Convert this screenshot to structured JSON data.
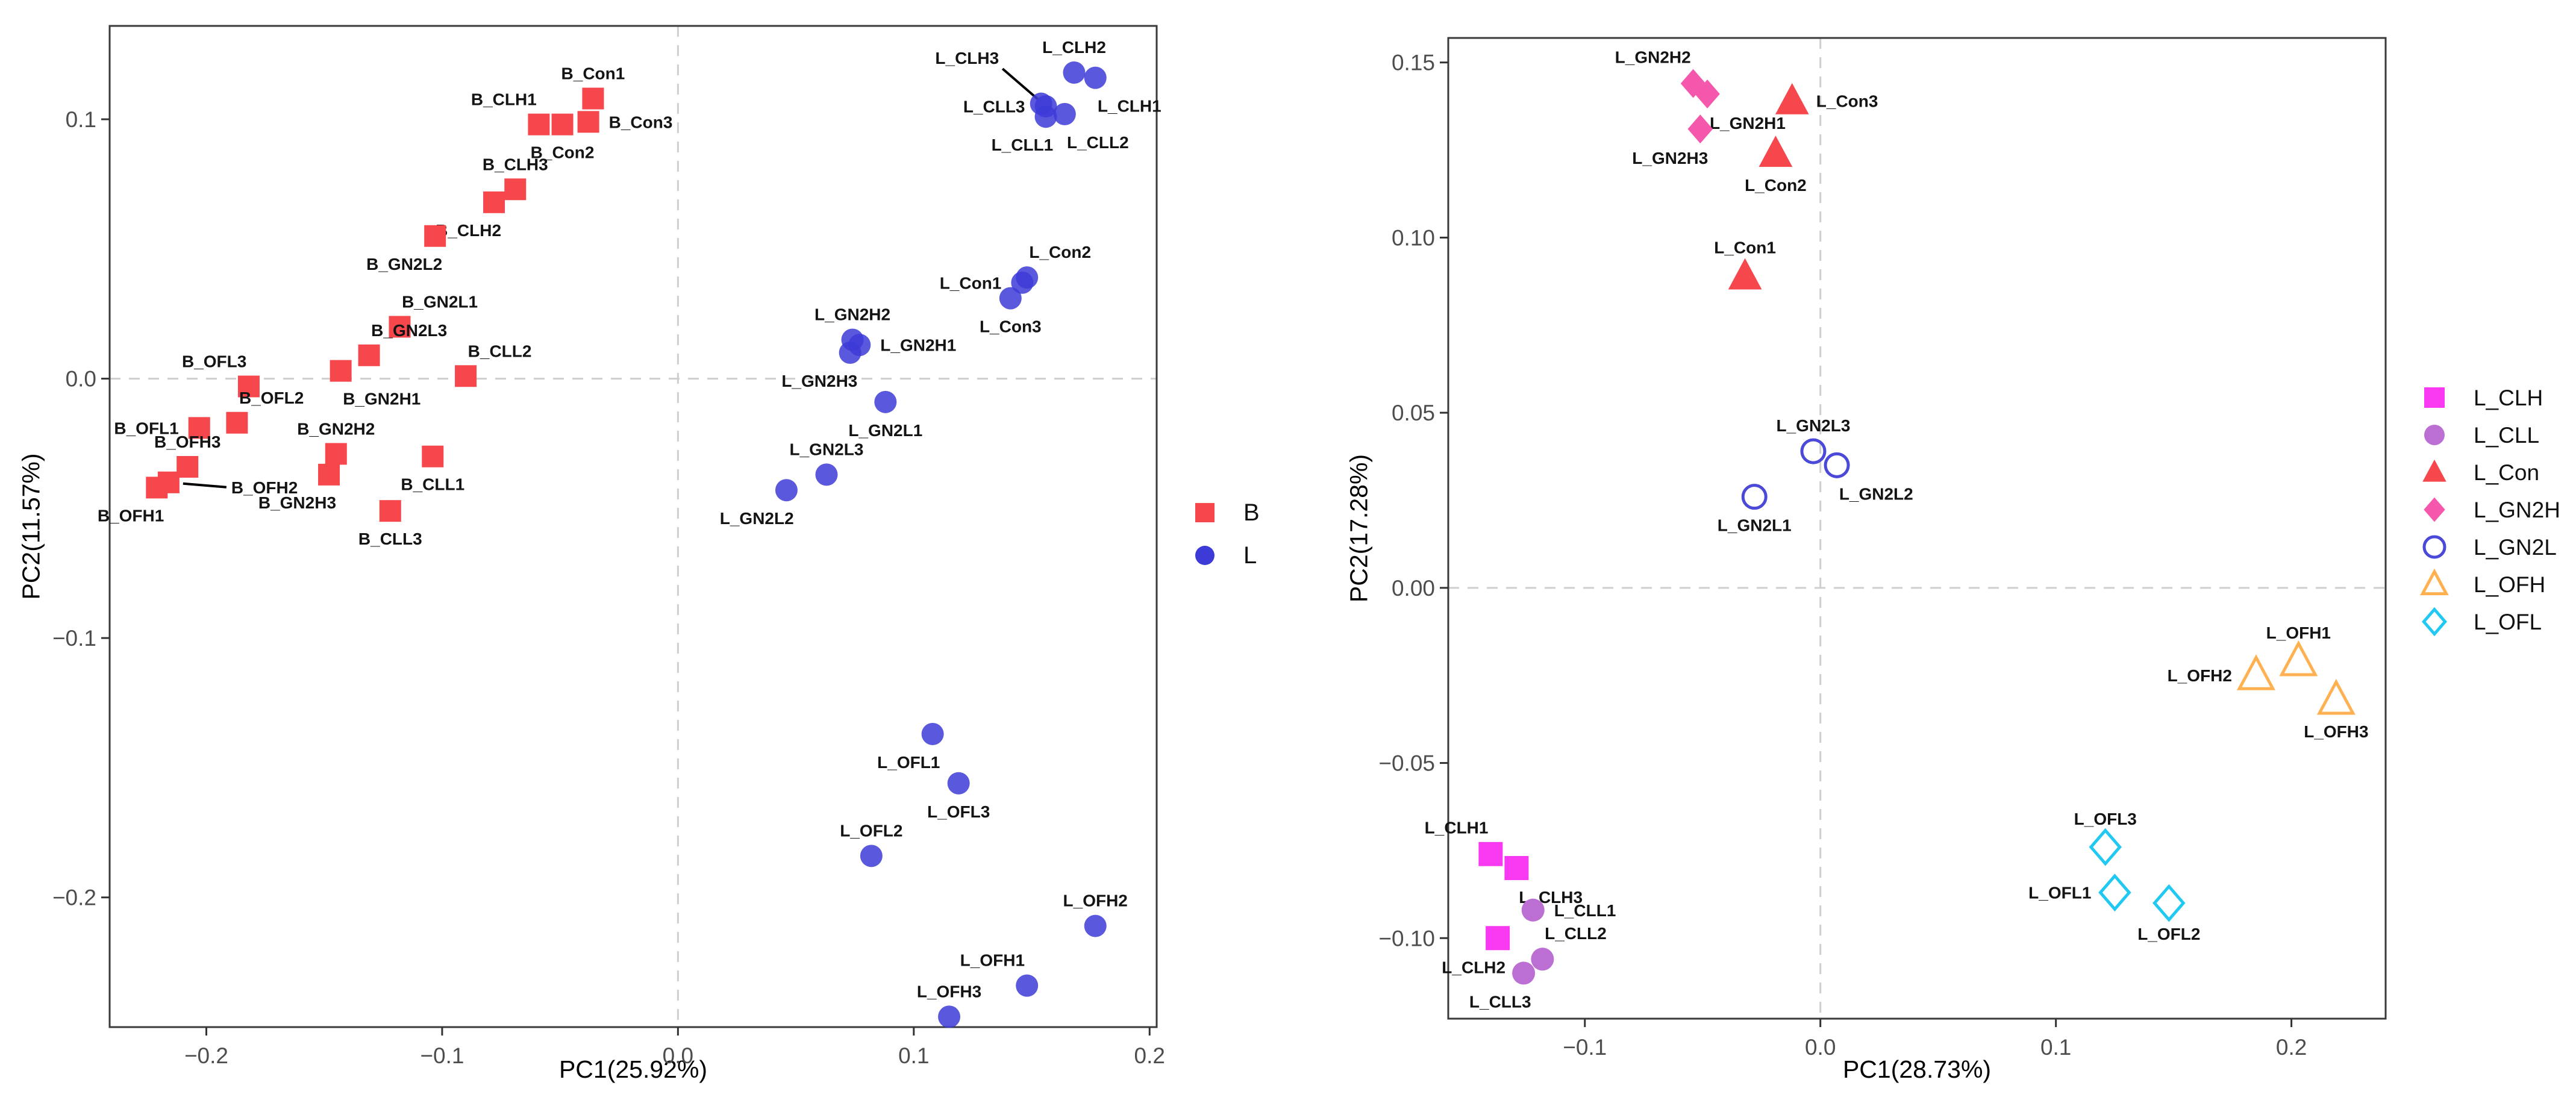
{
  "chart_data": [
    {
      "id": "left",
      "type": "scatter",
      "xlabel": "PC1(25.92%)",
      "ylabel": "PC2(11.57%)",
      "xlim": [
        -0.241,
        0.203
      ],
      "ylim": [
        -0.25,
        0.136
      ],
      "grid": false,
      "ref_line_x": 0.0,
      "ref_line_y": 0.0,
      "ref_line_color": "#CFCFCF",
      "xticks": [
        {
          "v": -0.2,
          "label": "−0.2"
        },
        {
          "v": -0.1,
          "label": "−0.1"
        },
        {
          "v": 0.0,
          "label": "0.0"
        },
        {
          "v": 0.1,
          "label": "0.1"
        },
        {
          "v": 0.2,
          "label": "0.2"
        }
      ],
      "yticks": [
        {
          "v": 0.1,
          "label": "0.1"
        },
        {
          "v": 0.0,
          "label": "0.0"
        },
        {
          "v": -0.1,
          "label": "−0.1"
        },
        {
          "v": -0.2,
          "label": "−0.2"
        }
      ],
      "legend_position": "right",
      "series": [
        {
          "name": "B",
          "marker": "square",
          "filled": true,
          "color": "#F6474D",
          "size": 36,
          "points": [
            {
              "label": "B_Con1",
              "x": -0.036,
              "y": 0.108,
              "anchor": "above"
            },
            {
              "label": "B_CLH1",
              "x": -0.059,
              "y": 0.098,
              "anchor": "above-left"
            },
            {
              "label": "B_Con2",
              "x": -0.049,
              "y": 0.098,
              "anchor": "below"
            },
            {
              "label": "B_Con3",
              "x": -0.038,
              "y": 0.099,
              "anchor": "right"
            },
            {
              "label": "B_CLH3",
              "x": -0.069,
              "y": 0.073,
              "anchor": "above"
            },
            {
              "label": "B_CLH2",
              "x": -0.078,
              "y": 0.068,
              "anchor": "below-left"
            },
            {
              "label": "B_GN2L2",
              "x": -0.103,
              "y": 0.055,
              "anchor": "below-left"
            },
            {
              "label": "B_GN2L1",
              "x": -0.118,
              "y": 0.02,
              "anchor": "above-right"
            },
            {
              "label": "B_GN2L3",
              "x": -0.131,
              "y": 0.009,
              "anchor": "above-right"
            },
            {
              "label": "B_GN2H1",
              "x": -0.143,
              "y": 0.003,
              "anchor": "below-right"
            },
            {
              "label": "B_CLL2",
              "x": -0.09,
              "y": 0.001,
              "anchor": "above-right"
            },
            {
              "label": "B_OFL3",
              "x": -0.182,
              "y": -0.003,
              "anchor": "above-left"
            },
            {
              "label": "B_OFL2",
              "x": -0.187,
              "y": -0.017,
              "anchor": "above-right"
            },
            {
              "label": "B_OFL1",
              "x": -0.203,
              "y": -0.019,
              "anchor": "left"
            },
            {
              "label": "B_GN2H2",
              "x": -0.145,
              "y": -0.029,
              "anchor": "above"
            },
            {
              "label": "B_GN2H3",
              "x": -0.148,
              "y": -0.037,
              "anchor": "below-left"
            },
            {
              "label": "B_CLL1",
              "x": -0.104,
              "y": -0.03,
              "anchor": "below"
            },
            {
              "label": "B_OFH3",
              "x": -0.208,
              "y": -0.034,
              "anchor": "above"
            },
            {
              "label": "B_OFH2",
              "x": -0.216,
              "y": -0.04,
              "anchor": "right",
              "leader": [
                24,
                2,
                96,
                8
              ],
              "label_dx": 104,
              "label_dy": 18,
              "label_anchor": "start"
            },
            {
              "label": "B_OFH1",
              "x": -0.221,
              "y": -0.042,
              "anchor": "below-left"
            },
            {
              "label": "B_CLL3",
              "x": -0.122,
              "y": -0.051,
              "anchor": "below"
            }
          ]
        },
        {
          "name": "L",
          "marker": "circle",
          "filled": true,
          "color": "#3D3BD7",
          "size": 37,
          "opacity": 0.85,
          "points": [
            {
              "label": "L_CLH3",
              "x": 0.154,
              "y": 0.106,
              "anchor": "above-left",
              "leader": [
                -6,
                -8,
                -64,
                -58
              ],
              "label_dx": -70,
              "label_dy": -66,
              "label_anchor": "end"
            },
            {
              "label": "L_CLL3",
              "x": 0.156,
              "y": 0.105,
              "anchor": "left"
            },
            {
              "label": "L_CLH2",
              "x": 0.168,
              "y": 0.118,
              "anchor": "above"
            },
            {
              "label": "L_CLH1",
              "x": 0.177,
              "y": 0.116,
              "anchor": "below-right"
            },
            {
              "label": "L_CLL1",
              "x": 0.156,
              "y": 0.101,
              "anchor": "below-left"
            },
            {
              "label": "L_CLL2",
              "x": 0.164,
              "y": 0.102,
              "anchor": "below-right"
            },
            {
              "label": "L_Con1",
              "x": 0.146,
              "y": 0.037,
              "anchor": "left"
            },
            {
              "label": "L_Con2",
              "x": 0.148,
              "y": 0.039,
              "anchor": "above-right"
            },
            {
              "label": "L_Con3",
              "x": 0.141,
              "y": 0.031,
              "anchor": "below"
            },
            {
              "label": "L_GN2H2",
              "x": 0.074,
              "y": 0.015,
              "anchor": "above"
            },
            {
              "label": "L_GN2H1",
              "x": 0.077,
              "y": 0.013,
              "anchor": "right"
            },
            {
              "label": "L_GN2H3",
              "x": 0.073,
              "y": 0.01,
              "anchor": "below-left"
            },
            {
              "label": "L_GN2L1",
              "x": 0.088,
              "y": -0.009,
              "anchor": "below"
            },
            {
              "label": "L_GN2L3",
              "x": 0.063,
              "y": -0.037,
              "anchor": "above"
            },
            {
              "label": "L_GN2L2",
              "x": 0.046,
              "y": -0.043,
              "anchor": "below-left"
            },
            {
              "label": "L_OFL1",
              "x": 0.108,
              "y": -0.137,
              "anchor": "below-left"
            },
            {
              "label": "L_OFL3",
              "x": 0.119,
              "y": -0.156,
              "anchor": "below"
            },
            {
              "label": "L_OFL2",
              "x": 0.082,
              "y": -0.184,
              "anchor": "above"
            },
            {
              "label": "L_OFH2",
              "x": 0.177,
              "y": -0.211,
              "anchor": "above"
            },
            {
              "label": "L_OFH1",
              "x": 0.148,
              "y": -0.234,
              "anchor": "above-left"
            },
            {
              "label": "L_OFH3",
              "x": 0.115,
              "y": -0.246,
              "anchor": "above"
            }
          ]
        }
      ]
    },
    {
      "id": "right",
      "type": "scatter",
      "xlabel": "PC1(28.73%)",
      "ylabel": "PC2(17.28%)",
      "xlim": [
        -0.158,
        0.24
      ],
      "ylim": [
        -0.123,
        0.157
      ],
      "grid": false,
      "ref_line_x": 0.0,
      "ref_line_y": 0.0,
      "ref_line_color": "#CFCFCF",
      "xticks": [
        {
          "v": -0.1,
          "label": "−0.1"
        },
        {
          "v": 0.0,
          "label": "0.0"
        },
        {
          "v": 0.1,
          "label": "0.1"
        },
        {
          "v": 0.2,
          "label": "0.2"
        }
      ],
      "yticks": [
        {
          "v": 0.15,
          "label": "0.15"
        },
        {
          "v": 0.1,
          "label": "0.10"
        },
        {
          "v": 0.05,
          "label": "0.05"
        },
        {
          "v": 0.0,
          "label": "0.00"
        },
        {
          "v": -0.05,
          "label": "−0.05"
        },
        {
          "v": -0.1,
          "label": "−0.10"
        }
      ],
      "legend_position": "right",
      "series": [
        {
          "name": "L_CLH",
          "marker": "square",
          "filled": true,
          "color": "#F939F2",
          "size": 40,
          "points": [
            {
              "label": "L_CLH1",
              "x": -0.14,
              "y": -0.076,
              "anchor": "above-left"
            },
            {
              "label": "L_CLH3",
              "x": -0.129,
              "y": -0.08,
              "anchor": "below-right"
            },
            {
              "label": "L_CLH2",
              "x": -0.137,
              "y": -0.1,
              "anchor": "below-left"
            }
          ]
        },
        {
          "name": "L_CLL",
          "marker": "circle",
          "filled": true,
          "color": "#BC6FD3",
          "size": 38,
          "points": [
            {
              "label": "L_CLL1",
              "x": -0.122,
              "y": -0.092,
              "anchor": "right"
            },
            {
              "label": "L_CLL2",
              "x": -0.118,
              "y": -0.106,
              "anchor": "above-right"
            },
            {
              "label": "L_CLL3",
              "x": -0.126,
              "y": -0.11,
              "anchor": "below-left"
            }
          ]
        },
        {
          "name": "L_Con",
          "marker": "triangle",
          "filled": true,
          "color": "#F6474D",
          "size": 48,
          "points": [
            {
              "label": "L_Con3",
              "x": -0.012,
              "y": 0.139,
              "anchor": "right"
            },
            {
              "label": "L_Con2",
              "x": -0.019,
              "y": 0.124,
              "anchor": "below"
            },
            {
              "label": "L_Con1",
              "x": -0.032,
              "y": 0.089,
              "anchor": "above"
            }
          ]
        },
        {
          "name": "L_GN2H",
          "marker": "diamond",
          "filled": true,
          "color": "#F457AC",
          "size": 40,
          "points": [
            {
              "label": "L_GN2H2",
              "x": -0.054,
              "y": 0.144,
              "anchor": "above-left"
            },
            {
              "label": "L_GN2H1",
              "x": -0.048,
              "y": 0.141,
              "anchor": "below-right"
            },
            {
              "label": "L_GN2H3",
              "x": -0.051,
              "y": 0.131,
              "anchor": "below-left"
            }
          ]
        },
        {
          "name": "L_GN2L",
          "marker": "circle",
          "filled": false,
          "color": "#4B49D8",
          "size": 38,
          "points": [
            {
              "label": "L_GN2L3",
              "x": -0.003,
              "y": 0.039,
              "anchor": "above"
            },
            {
              "label": "L_GN2L2",
              "x": 0.007,
              "y": 0.035,
              "anchor": "below-right"
            },
            {
              "label": "L_GN2L1",
              "x": -0.028,
              "y": 0.026,
              "anchor": "below"
            }
          ]
        },
        {
          "name": "L_OFH",
          "marker": "triangle",
          "filled": false,
          "color": "#FFB152",
          "size": 48,
          "points": [
            {
              "label": "L_OFH1",
              "x": 0.203,
              "y": -0.021,
              "anchor": "above"
            },
            {
              "label": "L_OFH2",
              "x": 0.185,
              "y": -0.025,
              "anchor": "left"
            },
            {
              "label": "L_OFH3",
              "x": 0.219,
              "y": -0.032,
              "anchor": "below"
            }
          ]
        },
        {
          "name": "L_OFL",
          "marker": "diamond",
          "filled": false,
          "color": "#20C8F2",
          "size": 46,
          "points": [
            {
              "label": "L_OFL3",
              "x": 0.121,
              "y": -0.074,
              "anchor": "above"
            },
            {
              "label": "L_OFL1",
              "x": 0.125,
              "y": -0.087,
              "anchor": "left"
            },
            {
              "label": "L_OFL2",
              "x": 0.148,
              "y": -0.09,
              "anchor": "below"
            }
          ]
        }
      ]
    }
  ],
  "style": {
    "panel_border_color": "#3A3A3A",
    "tick_color": "#333333",
    "tick_label_color": "#4D4D4D",
    "point_label_color": "#141414",
    "background": "#FFFFFF"
  }
}
